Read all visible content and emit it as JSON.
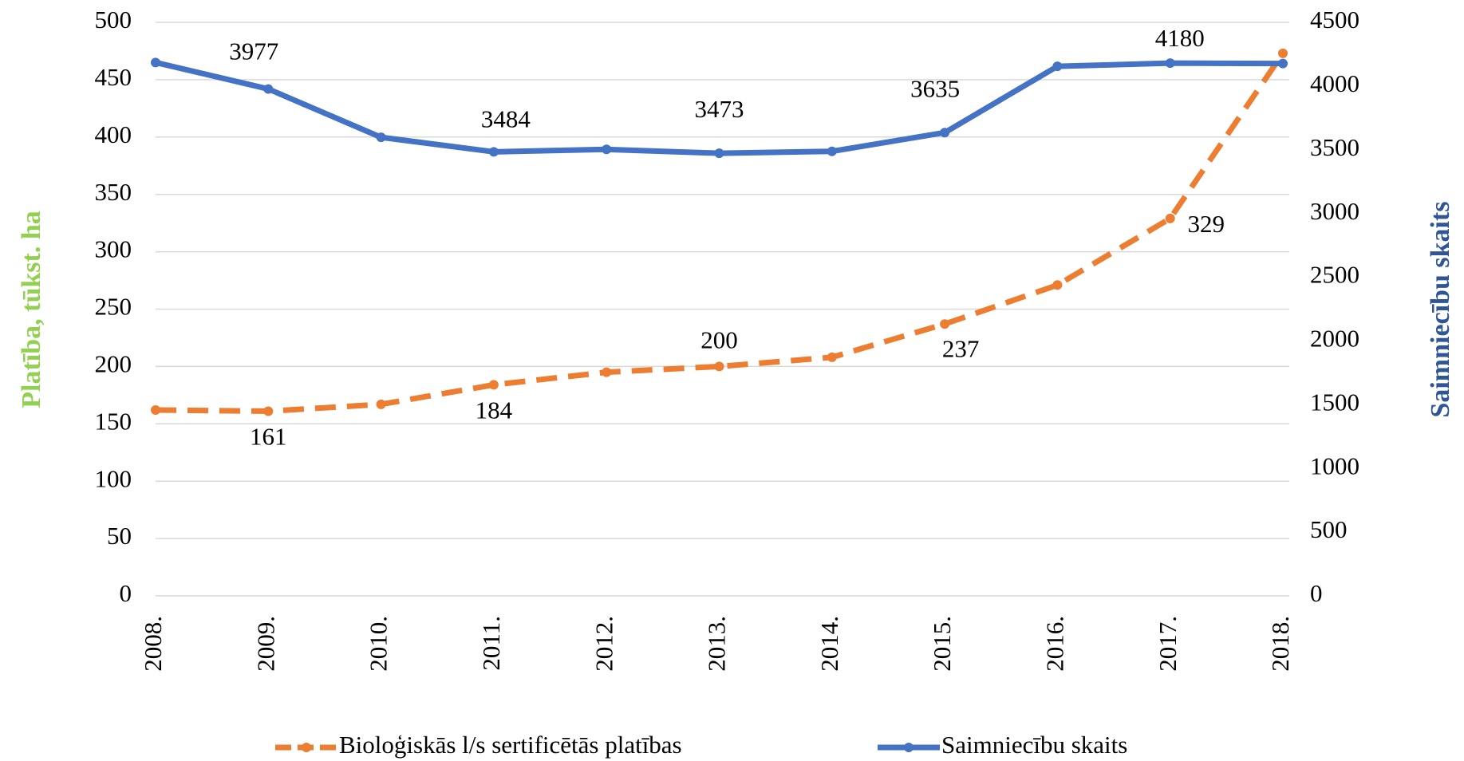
{
  "chart_data": {
    "type": "line",
    "categories": [
      "2008.",
      "2009.",
      "2010.",
      "2011.",
      "2012.",
      "2013.",
      "2014.",
      "2015.",
      "2016.",
      "2017.",
      "2018."
    ],
    "series": [
      {
        "name": "Bioloģiskās l/s sertificētās platības",
        "color": "#ed7d31",
        "dashed": true,
        "axis": "y",
        "values": [
          162,
          161,
          167,
          184,
          195,
          200,
          208,
          237,
          271,
          329,
          473
        ],
        "value_labels": [
          null,
          "161",
          null,
          "184",
          null,
          "200",
          null,
          "237",
          null,
          "329",
          null
        ]
      },
      {
        "name": "Saimniecību skaits",
        "color": "#4472c4",
        "axis": "y2",
        "values": [
          4185,
          3977,
          3598,
          3484,
          3503,
          3473,
          3488,
          3635,
          4155,
          4180,
          4177
        ],
        "value_labels": [
          null,
          "3977",
          null,
          "3484",
          null,
          "3473",
          null,
          "3635",
          null,
          "4180",
          null
        ]
      }
    ],
    "ylabel": "Platība, tūkst. ha",
    "ylabel_color": "#92d050",
    "y2label": "Saimniecību skaits",
    "y2label_color": "#2f5597",
    "ylim": [
      0,
      500
    ],
    "yticks": [
      0,
      50,
      100,
      150,
      200,
      250,
      300,
      350,
      400,
      450,
      500
    ],
    "y2lim": [
      0,
      4500
    ],
    "y2ticks": [
      0,
      500,
      1000,
      1500,
      2000,
      2500,
      3000,
      3500,
      4000,
      4500
    ],
    "grid": true,
    "legend": "bottom"
  }
}
